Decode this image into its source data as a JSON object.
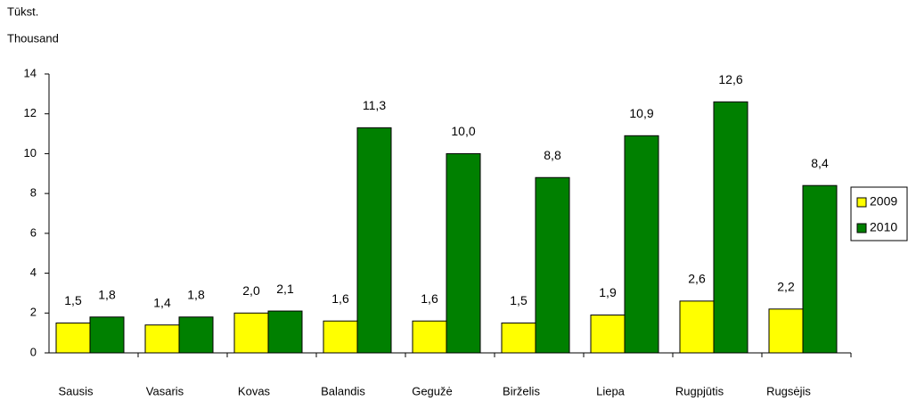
{
  "chart_data": {
    "type": "bar",
    "y_label": [
      "Tūkst.",
      "Thousand"
    ],
    "categories": [
      "Sausis",
      "Vasaris",
      "Kovas",
      "Balandis",
      "Gegužė",
      "Birželis",
      "Liepa",
      "Rugpjūtis",
      "Rugsėjis"
    ],
    "series": [
      {
        "name": "2009",
        "color": "#ffff00",
        "values": [
          1.5,
          1.4,
          2.0,
          1.6,
          1.6,
          1.5,
          1.9,
          2.6,
          2.2
        ],
        "value_labels": [
          "1,5",
          "1,4",
          "2,0",
          "1,6",
          "1,6",
          "1,5",
          "1,9",
          "2,6",
          "2,2"
        ]
      },
      {
        "name": "2010",
        "color": "#008000",
        "values": [
          1.8,
          1.8,
          2.1,
          11.3,
          10.0,
          8.8,
          10.9,
          12.6,
          8.4
        ],
        "value_labels": [
          "1,8",
          "1,8",
          "2,1",
          "11,3",
          "10,0",
          "8,8",
          "10,9",
          "12,6",
          "8,4"
        ]
      }
    ],
    "ylim": [
      0,
      14
    ],
    "yticks": [
      0,
      2,
      4,
      6,
      8,
      10,
      12,
      14
    ],
    "grid": false,
    "legend": "right"
  }
}
